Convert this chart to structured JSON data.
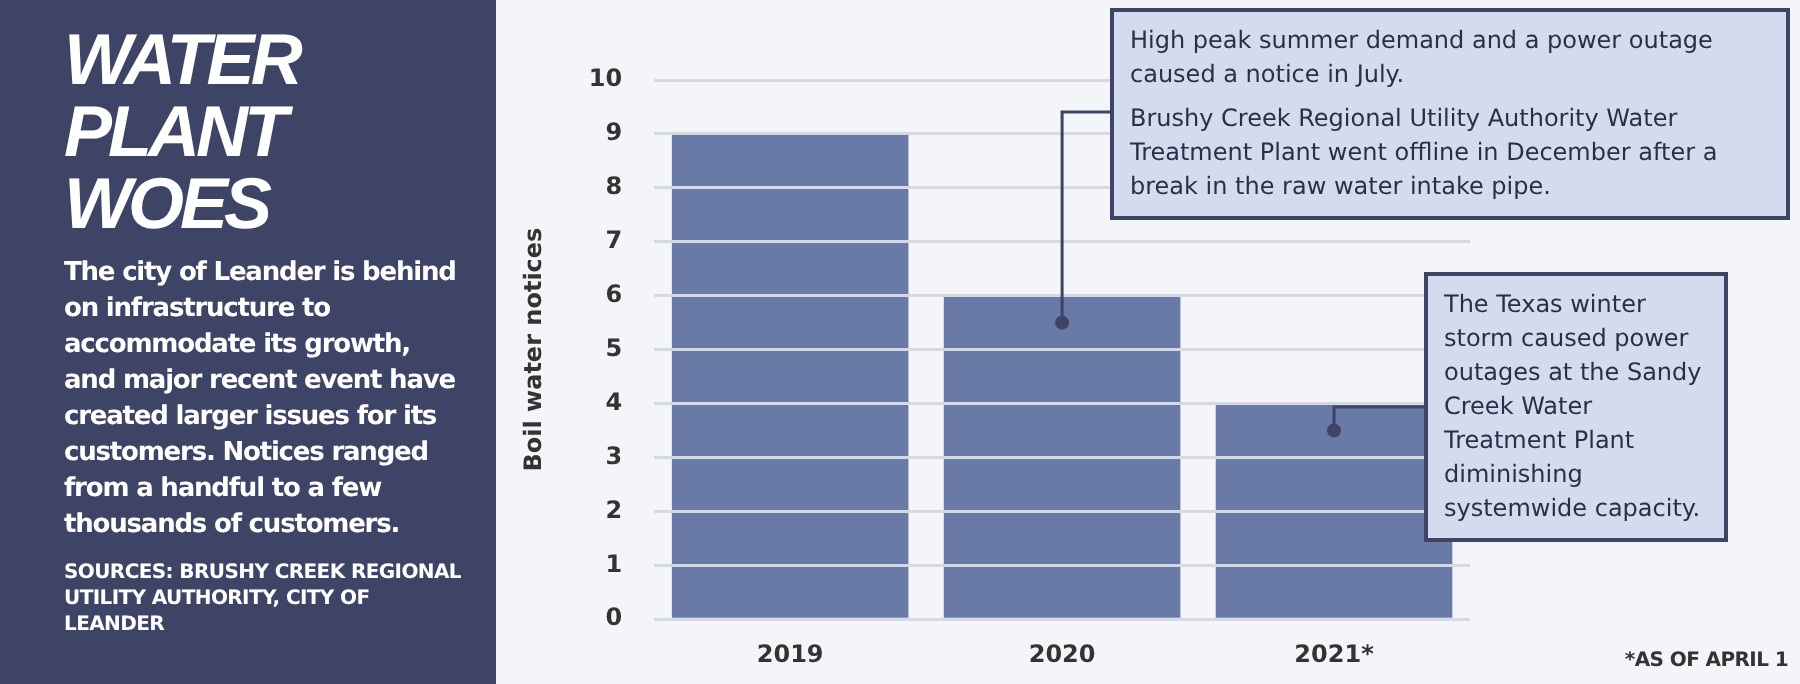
{
  "chart_data": {
    "type": "bar",
    "title": "WATER PLANT WOES",
    "subtitle": "The city of Leander is behind on infrastructure to accommodate its growth, and major recent event have created larger issues for its customers. Notices ranged from a handful to a few thousands of customers.",
    "ylabel": "Boil water notices",
    "categories": [
      "2019",
      "2020",
      "2021*"
    ],
    "values": [
      9,
      6,
      4
    ],
    "color": "#6a7aa6",
    "ylim": [
      0,
      10
    ],
    "yticks": [
      0,
      1,
      2,
      3,
      4,
      5,
      6,
      7,
      8,
      9,
      10
    ],
    "grid": "y",
    "legend": false,
    "annotations": [
      "SOURCES: BRUSHY CREEK REGIONAL UTILITY AUTHORITY, CITY OF LEANDER",
      "*AS OF APRIL 1",
      {
        "text": "High peak summer demand and a power outage caused a notice in July.\nBrushy Creek Regional Utility Authority Water Treatment Plant went offline in December after a break in the raw water intake pipe.",
        "x": "2020",
        "y": 5.5
      },
      {
        "text": "The Texas winter storm caused power outages at the Sandy Creek Water Treatment Plant diminishing systemwide capacity.",
        "x": "2021*",
        "y": 3.5
      }
    ]
  }
}
